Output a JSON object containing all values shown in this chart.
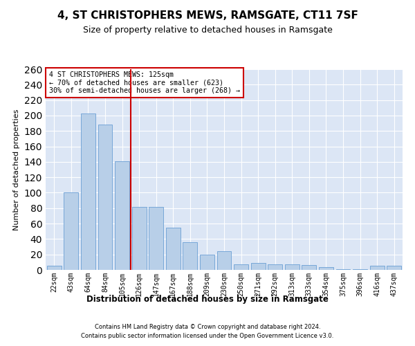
{
  "title": "4, ST CHRISTOPHERS MEWS, RAMSGATE, CT11 7SF",
  "subtitle": "Size of property relative to detached houses in Ramsgate",
  "xlabel": "Distribution of detached houses by size in Ramsgate",
  "ylabel": "Number of detached properties",
  "categories": [
    "22sqm",
    "43sqm",
    "64sqm",
    "84sqm",
    "105sqm",
    "126sqm",
    "147sqm",
    "167sqm",
    "188sqm",
    "209sqm",
    "230sqm",
    "250sqm",
    "271sqm",
    "292sqm",
    "313sqm",
    "333sqm",
    "354sqm",
    "375sqm",
    "396sqm",
    "416sqm",
    "437sqm"
  ],
  "values": [
    5,
    100,
    203,
    188,
    141,
    82,
    82,
    55,
    36,
    20,
    24,
    7,
    9,
    7,
    7,
    6,
    4,
    1,
    1,
    5,
    5
  ],
  "bar_color": "#b8cfe8",
  "bar_edge_color": "#6a9fd4",
  "background_color": "#dce6f5",
  "grid_color": "#ffffff",
  "vline_x": 4.5,
  "vline_color": "#cc0000",
  "annotation_lines": [
    "4 ST CHRISTOPHERS MEWS: 125sqm",
    "← 70% of detached houses are smaller (623)",
    "30% of semi-detached houses are larger (268) →"
  ],
  "annotation_box_color": "#cc0000",
  "ylim": [
    0,
    260
  ],
  "yticks": [
    0,
    20,
    40,
    60,
    80,
    100,
    120,
    140,
    160,
    180,
    200,
    220,
    240,
    260
  ],
  "fig_bg": "#ffffff",
  "title_fontsize": 11,
  "subtitle_fontsize": 9,
  "footer1": "Contains HM Land Registry data © Crown copyright and database right 2024.",
  "footer2": "Contains public sector information licensed under the Open Government Licence v3.0."
}
